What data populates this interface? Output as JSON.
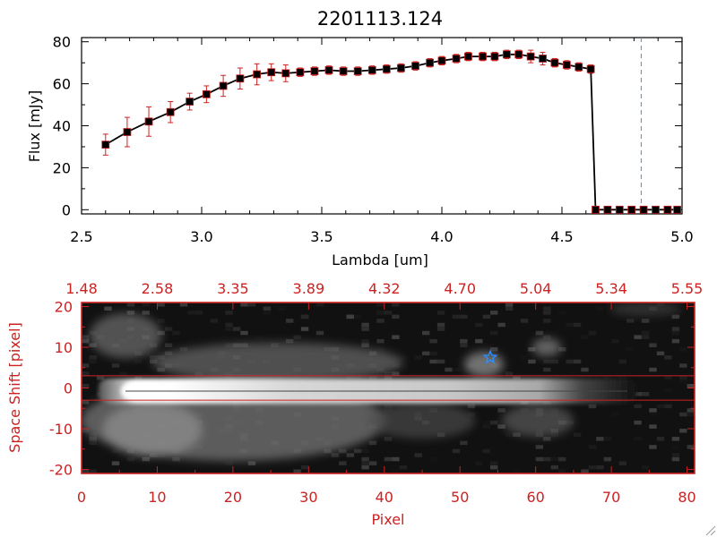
{
  "colors": {
    "axis_top": "#000000",
    "axis_bottom": "#cc2222",
    "marker": "#000000",
    "error_bar": "#cc2222",
    "marker_edge": "#cc2222",
    "cutoff_line": "#4a9fe8",
    "star": "#2a8fff"
  },
  "chart_data": [
    {
      "type": "line",
      "title": "2201113.124",
      "xlabel": "Lambda [um]",
      "ylabel": "Flux [mJy]",
      "xlim": [
        2.5,
        5.0
      ],
      "ylim": [
        -2,
        82
      ],
      "x_ticks": [
        2.5,
        3.0,
        3.5,
        4.0,
        4.5,
        5.0
      ],
      "x_tick_labels": [
        "2.5",
        "3.0",
        "3.5",
        "4.0",
        "4.5",
        "5.0"
      ],
      "y_ticks": [
        0,
        20,
        40,
        60,
        80
      ],
      "y_tick_labels": [
        "0",
        "20",
        "40",
        "60",
        "80"
      ],
      "cutoff_line_x": 4.83,
      "series": [
        {
          "x": [
            2.6,
            2.69,
            2.78,
            2.87,
            2.95,
            3.02,
            3.09,
            3.16,
            3.23,
            3.29,
            3.35,
            3.41,
            3.47,
            3.53,
            3.59,
            3.65,
            3.71,
            3.77,
            3.83,
            3.89,
            3.95,
            4.0,
            4.06,
            4.11,
            4.17,
            4.22,
            4.27,
            4.32,
            4.37,
            4.42,
            4.47,
            4.52,
            4.57,
            4.62,
            4.64,
            4.69,
            4.74,
            4.79,
            4.84,
            4.89,
            4.94,
            4.98
          ],
          "y": [
            31,
            37,
            42,
            46.5,
            51.5,
            55,
            59,
            62.5,
            64.5,
            65.5,
            65,
            65.5,
            66,
            66.5,
            66,
            66,
            66.5,
            67,
            67.5,
            68.5,
            70,
            71,
            72,
            73,
            73,
            73,
            74,
            74,
            73,
            72,
            70,
            69,
            68,
            67,
            0,
            0,
            0,
            0,
            0,
            0,
            0,
            0
          ],
          "yerr": [
            5,
            7,
            7,
            5,
            4,
            4,
            5,
            5,
            5,
            4,
            4,
            2,
            2,
            2,
            2,
            2,
            2,
            2,
            2,
            2,
            2,
            2,
            2,
            2,
            2,
            2,
            2,
            2,
            3,
            3,
            2,
            2,
            2,
            2,
            0,
            0,
            0,
            0,
            0,
            0,
            0,
            0
          ]
        }
      ]
    },
    {
      "type": "heatmap",
      "xlabel": "Pixel",
      "ylabel": "Space Shift [pixel]",
      "xlim": [
        0,
        81
      ],
      "ylim": [
        -21,
        21
      ],
      "x_ticks": [
        0,
        10,
        20,
        30,
        40,
        50,
        60,
        70,
        80
      ],
      "x_tick_labels": [
        "0",
        "10",
        "20",
        "30",
        "40",
        "50",
        "60",
        "70",
        "80"
      ],
      "y_ticks": [
        -20,
        -10,
        0,
        10,
        20
      ],
      "y_tick_labels": [
        "-20",
        "-10",
        "0",
        "10",
        "20"
      ],
      "top_x_tick_labels": [
        "1.48",
        "2.58",
        "3.35",
        "3.89",
        "4.32",
        "4.70",
        "5.04",
        "5.34",
        "5.55"
      ],
      "extraction_aperture_y": [
        -3,
        3
      ],
      "trace_y": 0,
      "marker_star": {
        "x": 54,
        "y": 7.5
      }
    }
  ]
}
